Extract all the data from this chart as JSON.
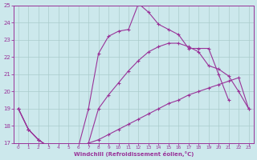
{
  "line1": {
    "x": [
      0,
      1,
      2,
      3,
      4,
      5,
      6,
      7,
      8,
      9,
      10,
      11,
      12,
      13,
      14,
      15,
      16,
      17,
      18,
      19,
      20,
      21,
      22,
      23
    ],
    "y": [
      19.0,
      17.8,
      17.2,
      16.8,
      16.8,
      16.8,
      16.8,
      17.0,
      17.2,
      17.5,
      17.8,
      18.1,
      18.4,
      18.7,
      19.0,
      19.3,
      19.5,
      19.8,
      20.0,
      20.2,
      20.4,
      20.6,
      20.8,
      19.0
    ]
  },
  "line2": {
    "x": [
      0,
      1,
      2,
      3,
      4,
      5,
      6,
      7,
      8,
      9,
      10,
      11,
      12,
      13,
      14,
      15,
      16,
      17,
      18,
      19,
      20,
      21,
      22,
      23
    ],
    "y": [
      19.0,
      17.8,
      17.2,
      16.8,
      16.8,
      16.8,
      16.8,
      17.0,
      19.0,
      19.8,
      20.5,
      21.2,
      21.8,
      22.3,
      22.6,
      22.8,
      22.8,
      22.6,
      22.3,
      21.5,
      21.3,
      20.9,
      20.0,
      19.0
    ]
  },
  "line3": {
    "x": [
      0,
      1,
      2,
      3,
      4,
      5,
      6,
      7,
      8,
      9,
      10,
      11,
      12,
      13,
      14,
      15,
      16,
      17,
      18,
      19,
      20,
      21,
      22,
      23
    ],
    "y": [
      19.0,
      17.8,
      17.2,
      16.8,
      16.8,
      16.8,
      16.8,
      19.0,
      22.2,
      23.2,
      23.5,
      23.6,
      25.1,
      24.6,
      23.9,
      23.6,
      23.3,
      22.5,
      22.5,
      22.5,
      21.0,
      19.5,
      null,
      null
    ]
  },
  "color": "#993399",
  "bg_color": "#cce8ec",
  "grid_color": "#aacccc",
  "xlabel": "Windchill (Refroidissement éolien,°C)",
  "xlim": [
    -0.5,
    23.5
  ],
  "ylim": [
    17,
    25
  ],
  "yticks": [
    17,
    18,
    19,
    20,
    21,
    22,
    23,
    24,
    25
  ],
  "xticks": [
    0,
    1,
    2,
    3,
    4,
    5,
    6,
    7,
    8,
    9,
    10,
    11,
    12,
    13,
    14,
    15,
    16,
    17,
    18,
    19,
    20,
    21,
    22,
    23
  ]
}
